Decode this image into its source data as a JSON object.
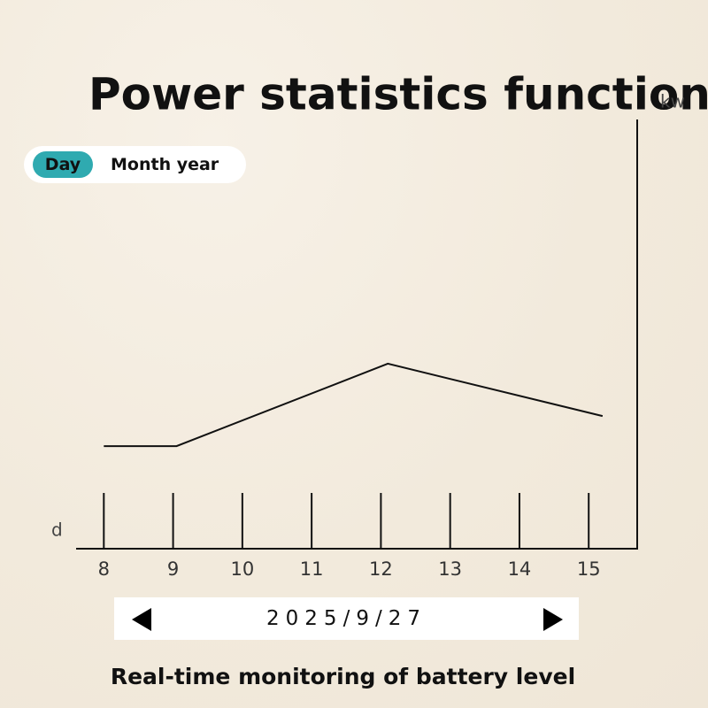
{
  "chart_data": {
    "type": "line",
    "title": "Power statistics function",
    "y_label": "kw",
    "x_label": "d",
    "x": [
      8,
      9.05,
      12.1,
      15.2
    ],
    "values": [
      2.39,
      2.39,
      4.31,
      3.09
    ],
    "color": "#111111",
    "xlim": [
      7.6,
      15.7
    ],
    "xticks": [
      8,
      9,
      10,
      11,
      12,
      13,
      14,
      15
    ],
    "ylim": [
      0,
      10
    ]
  },
  "tabs": [
    "Day",
    "Month year"
  ],
  "date": "2025/9/27",
  "footer": "Real-time monitoring of battery level"
}
